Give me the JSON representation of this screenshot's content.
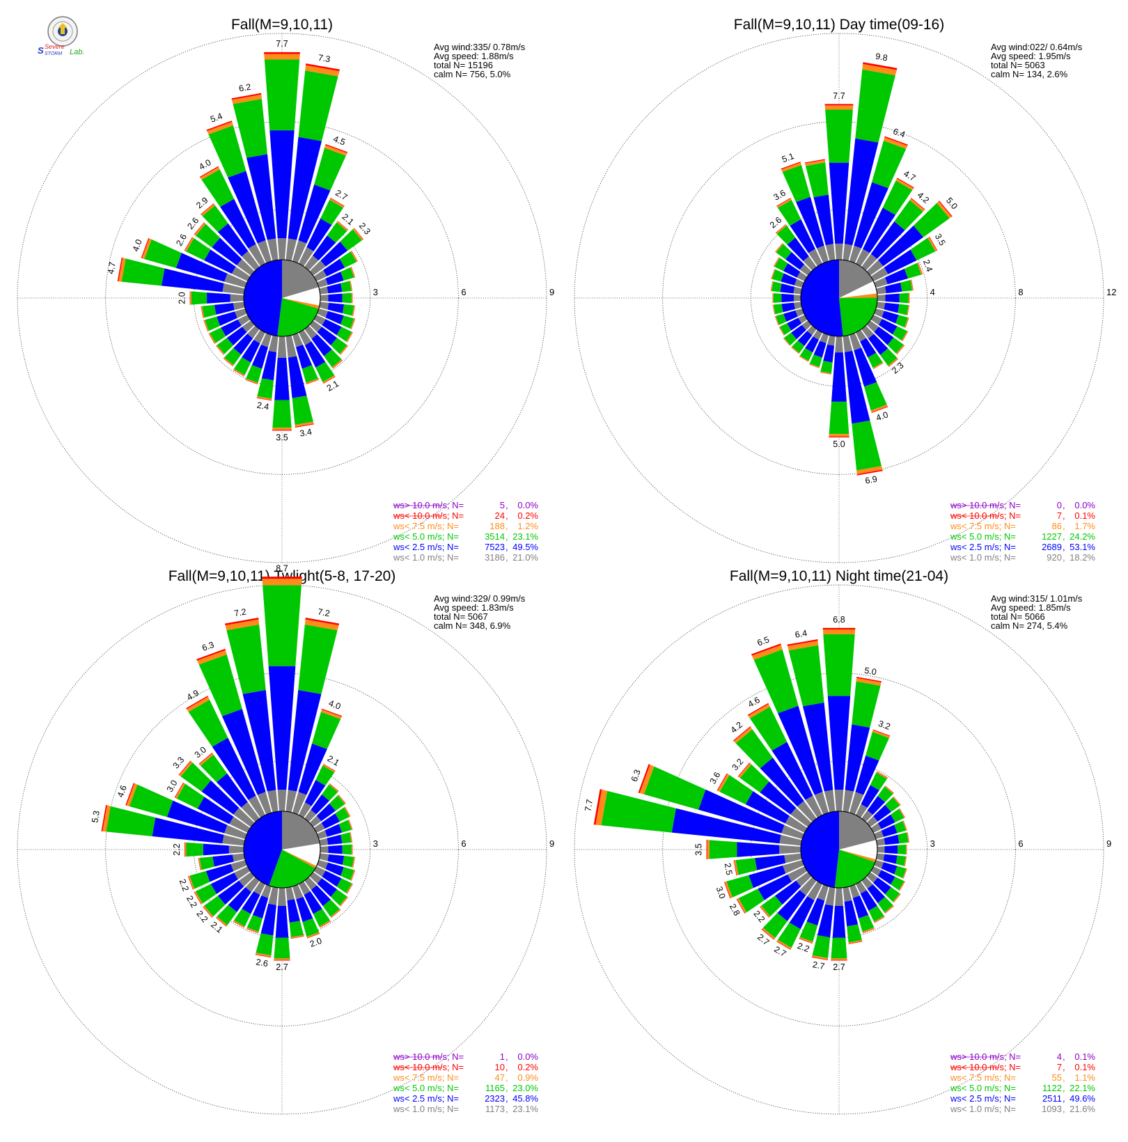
{
  "logo": {
    "text": "Severe Storm Lab."
  },
  "classes": [
    {
      "key": "gt10",
      "label": "ws> 10.0 m/s; N=",
      "color": "#8b00c8"
    },
    {
      "key": "lt10",
      "label": "ws< 10.0 m/s; N=",
      "color": "#ff0000"
    },
    {
      "key": "lt75",
      "label": "ws<  7.5 m/s; N=",
      "color": "#ff8c1a"
    },
    {
      "key": "lt5",
      "label": "ws<  5.0 m/s; N=",
      "color": "#00c800"
    },
    {
      "key": "lt25",
      "label": "ws<  2.5 m/s; N=",
      "color": "#0000ff"
    },
    {
      "key": "lt1",
      "label": "ws<  1.0 m/s; N=",
      "color": "#808080"
    }
  ],
  "chart_data": [
    {
      "type": "wind_rose",
      "title": "Fall(M=9,10,11)",
      "rings": [
        "3",
        "6",
        "9"
      ],
      "ring_max": 9,
      "stats": [
        "Avg wind:335/ 0.78m/s",
        "Avg speed: 1.88m/s",
        "total N=       15196",
        "calm N=     756,   5.0%"
      ],
      "legend": [
        {
          "n": "5",
          "pct": "0.0%"
        },
        {
          "n": "24",
          "pct": "0.2%"
        },
        {
          "n": "188",
          "pct": "1.2%"
        },
        {
          "n": "3514",
          "pct": "23.1%"
        },
        {
          "n": "7523",
          "pct": "49.5%"
        },
        {
          "n": "3186",
          "pct": "21.0%"
        }
      ],
      "bars_by_direction_deg": [
        {
          "dir": 0,
          "total": 7.7,
          "label": "7.7"
        },
        {
          "dir": 10,
          "total": 7.3,
          "label": "7.3"
        },
        {
          "dir": 20,
          "total": 4.5,
          "label": "4.5"
        },
        {
          "dir": 30,
          "total": 2.7,
          "label": "2.7"
        },
        {
          "dir": 40,
          "total": 2.1,
          "label": "2.1"
        },
        {
          "dir": 50,
          "total": 2.3,
          "label": "2.3"
        },
        {
          "dir": 60,
          "total": 1.7
        },
        {
          "dir": 70,
          "total": 1.4
        },
        {
          "dir": 80,
          "total": 1.2
        },
        {
          "dir": 90,
          "total": 1.2
        },
        {
          "dir": 100,
          "total": 1.3
        },
        {
          "dir": 110,
          "total": 1.4
        },
        {
          "dir": 120,
          "total": 1.5
        },
        {
          "dir": 130,
          "total": 1.6
        },
        {
          "dir": 140,
          "total": 1.8
        },
        {
          "dir": 150,
          "total": 2.1,
          "label": "2.1"
        },
        {
          "dir": 160,
          "total": 1.9
        },
        {
          "dir": 170,
          "total": 3.4,
          "label": "3.4"
        },
        {
          "dir": 180,
          "total": 3.5,
          "label": "3.5"
        },
        {
          "dir": 190,
          "total": 2.4,
          "label": "2.4"
        },
        {
          "dir": 200,
          "total": 1.9
        },
        {
          "dir": 210,
          "total": 1.8
        },
        {
          "dir": 220,
          "total": 1.7
        },
        {
          "dir": 230,
          "total": 1.6
        },
        {
          "dir": 240,
          "total": 1.6
        },
        {
          "dir": 250,
          "total": 1.6
        },
        {
          "dir": 260,
          "total": 1.6
        },
        {
          "dir": 270,
          "total": 2.0,
          "label": "2.0"
        },
        {
          "dir": 280,
          "total": 4.7,
          "label": "4.7"
        },
        {
          "dir": 290,
          "total": 4.0,
          "label": "4.0"
        },
        {
          "dir": 300,
          "total": 2.6,
          "label": "2.6"
        },
        {
          "dir": 310,
          "total": 2.6,
          "label": "2.6"
        },
        {
          "dir": 320,
          "total": 2.9,
          "label": "2.9"
        },
        {
          "dir": 330,
          "total": 4.0,
          "label": "4.0"
        },
        {
          "dir": 340,
          "total": 5.4,
          "label": "5.4"
        },
        {
          "dir": 350,
          "total": 6.2,
          "label": "6.2"
        }
      ]
    },
    {
      "type": "wind_rose",
      "title": "Fall(M=9,10,11) Day time(09-16)",
      "rings": [
        "4",
        "8",
        "12"
      ],
      "ring_max": 12,
      "stats": [
        "Avg wind:022/ 0.64m/s",
        "Avg speed: 1.95m/s",
        "total N=        5063",
        "calm N=     134,   2.6%"
      ],
      "legend": [
        {
          "n": "0",
          "pct": "0.0%"
        },
        {
          "n": "7",
          "pct": "0.1%"
        },
        {
          "n": "86",
          "pct": "1.7%"
        },
        {
          "n": "1227",
          "pct": "24.2%"
        },
        {
          "n": "2689",
          "pct": "53.1%"
        },
        {
          "n": "920",
          "pct": "18.2%"
        }
      ],
      "bars_by_direction_deg": [
        {
          "dir": 0,
          "total": 7.7,
          "label": "7.7"
        },
        {
          "dir": 10,
          "total": 9.8,
          "label": "9.8"
        },
        {
          "dir": 20,
          "total": 6.4,
          "label": "6.4"
        },
        {
          "dir": 30,
          "total": 4.7,
          "label": "4.7"
        },
        {
          "dir": 40,
          "total": 4.2,
          "label": "4.2"
        },
        {
          "dir": 50,
          "total": 5.0,
          "label": "5.0"
        },
        {
          "dir": 60,
          "total": 3.5,
          "label": "3.5"
        },
        {
          "dir": 70,
          "total": 2.4,
          "label": "2.4"
        },
        {
          "dir": 80,
          "total": 1.8
        },
        {
          "dir": 90,
          "total": 1.6
        },
        {
          "dir": 100,
          "total": 1.6
        },
        {
          "dir": 110,
          "total": 1.7
        },
        {
          "dir": 120,
          "total": 1.9
        },
        {
          "dir": 130,
          "total": 2.1
        },
        {
          "dir": 140,
          "total": 2.3,
          "label": "2.3"
        },
        {
          "dir": 150,
          "total": 2.0
        },
        {
          "dir": 160,
          "total": 4.0,
          "label": "4.0"
        },
        {
          "dir": 170,
          "total": 6.9,
          "label": "6.9"
        },
        {
          "dir": 180,
          "total": 5.0,
          "label": "5.0"
        },
        {
          "dir": 190,
          "total": 1.9
        },
        {
          "dir": 200,
          "total": 1.7
        },
        {
          "dir": 210,
          "total": 1.6
        },
        {
          "dir": 220,
          "total": 1.5
        },
        {
          "dir": 230,
          "total": 1.5
        },
        {
          "dir": 240,
          "total": 1.4
        },
        {
          "dir": 250,
          "total": 1.4
        },
        {
          "dir": 260,
          "total": 1.4
        },
        {
          "dir": 270,
          "total": 1.4
        },
        {
          "dir": 280,
          "total": 1.5
        },
        {
          "dir": 290,
          "total": 1.6
        },
        {
          "dir": 300,
          "total": 1.7
        },
        {
          "dir": 310,
          "total": 2.0
        },
        {
          "dir": 320,
          "total": 2.6,
          "label": "2.6"
        },
        {
          "dir": 330,
          "total": 3.6,
          "label": "3.6"
        },
        {
          "dir": 340,
          "total": 5.1,
          "label": "5.1"
        },
        {
          "dir": 350,
          "total": 5.0
        }
      ]
    },
    {
      "type": "wind_rose",
      "title": "Fall(M=9,10,11) Twlight(5-8, 17-20)",
      "rings": [
        "3",
        "6",
        "9"
      ],
      "ring_max": 9,
      "stats": [
        "Avg wind:329/ 0.99m/s",
        "Avg speed: 1.83m/s",
        "total N=        5067",
        "calm N=     348,   6.9%"
      ],
      "legend": [
        {
          "n": "1",
          "pct": "0.0%"
        },
        {
          "n": "10",
          "pct": "0.2%"
        },
        {
          "n": "47",
          "pct": "0.9%"
        },
        {
          "n": "1165",
          "pct": "23.0%"
        },
        {
          "n": "2323",
          "pct": "45.8%"
        },
        {
          "n": "1173",
          "pct": "23.1%"
        }
      ],
      "bars_by_direction_deg": [
        {
          "dir": 0,
          "total": 8.7,
          "label": "8.7"
        },
        {
          "dir": 10,
          "total": 7.2,
          "label": "7.2"
        },
        {
          "dir": 20,
          "total": 4.0,
          "label": "4.0"
        },
        {
          "dir": 30,
          "total": 2.1,
          "label": "2.1"
        },
        {
          "dir": 40,
          "total": 1.6
        },
        {
          "dir": 50,
          "total": 1.5
        },
        {
          "dir": 60,
          "total": 1.4
        },
        {
          "dir": 70,
          "total": 1.3
        },
        {
          "dir": 80,
          "total": 1.2
        },
        {
          "dir": 90,
          "total": 1.2
        },
        {
          "dir": 100,
          "total": 1.3
        },
        {
          "dir": 110,
          "total": 1.4
        },
        {
          "dir": 120,
          "total": 1.5
        },
        {
          "dir": 130,
          "total": 1.6
        },
        {
          "dir": 140,
          "total": 1.7
        },
        {
          "dir": 150,
          "total": 1.8
        },
        {
          "dir": 160,
          "total": 2.0,
          "label": "2.0"
        },
        {
          "dir": 170,
          "total": 1.9
        },
        {
          "dir": 180,
          "total": 2.7,
          "label": "2.7"
        },
        {
          "dir": 190,
          "total": 2.6,
          "label": "2.6"
        },
        {
          "dir": 200,
          "total": 1.8
        },
        {
          "dir": 210,
          "total": 1.8
        },
        {
          "dir": 220,
          "total": 2.1,
          "label": "2.1"
        },
        {
          "dir": 230,
          "total": 2.2,
          "label": "2.2"
        },
        {
          "dir": 240,
          "total": 2.2,
          "label": "2.2"
        },
        {
          "dir": 250,
          "total": 2.2,
          "label": "2.2"
        },
        {
          "dir": 260,
          "total": 1.7
        },
        {
          "dir": 270,
          "total": 2.2,
          "label": "2.2"
        },
        {
          "dir": 280,
          "total": 5.3,
          "label": "5.3"
        },
        {
          "dir": 290,
          "total": 4.6,
          "label": "4.6"
        },
        {
          "dir": 300,
          "total": 3.0,
          "label": "3.0"
        },
        {
          "dir": 310,
          "total": 3.3,
          "label": "3.3"
        },
        {
          "dir": 320,
          "total": 3.0,
          "label": "3.0"
        },
        {
          "dir": 330,
          "total": 4.9,
          "label": "4.9"
        },
        {
          "dir": 340,
          "total": 6.3,
          "label": "6.3"
        },
        {
          "dir": 350,
          "total": 7.2,
          "label": "7.2"
        }
      ]
    },
    {
      "type": "wind_rose",
      "title": "Fall(M=9,10,11) Night time(21-04)",
      "rings": [
        "3",
        "6",
        "9"
      ],
      "ring_max": 9,
      "stats": [
        "Avg wind:315/ 1.01m/s",
        "Avg speed: 1.85m/s",
        "total N=        5066",
        "calm N=     274,   5.4%"
      ],
      "legend": [
        {
          "n": "4",
          "pct": "0.1%"
        },
        {
          "n": "7",
          "pct": "0.1%"
        },
        {
          "n": "55",
          "pct": "1.1%"
        },
        {
          "n": "1122",
          "pct": "22.1%"
        },
        {
          "n": "2511",
          "pct": "49.6%"
        },
        {
          "n": "1093",
          "pct": "21.6%"
        }
      ],
      "bars_by_direction_deg": [
        {
          "dir": 0,
          "total": 6.8,
          "label": "6.8"
        },
        {
          "dir": 10,
          "total": 5.0,
          "label": "5.0"
        },
        {
          "dir": 20,
          "total": 3.2,
          "label": "3.2"
        },
        {
          "dir": 30,
          "total": 1.8
        },
        {
          "dir": 40,
          "total": 1.5
        },
        {
          "dir": 50,
          "total": 1.4
        },
        {
          "dir": 60,
          "total": 1.3
        },
        {
          "dir": 70,
          "total": 1.2
        },
        {
          "dir": 80,
          "total": 1.2
        },
        {
          "dir": 90,
          "total": 1.1
        },
        {
          "dir": 100,
          "total": 1.1
        },
        {
          "dir": 110,
          "total": 1.2
        },
        {
          "dir": 120,
          "total": 1.3
        },
        {
          "dir": 130,
          "total": 1.4
        },
        {
          "dir": 140,
          "total": 1.5
        },
        {
          "dir": 150,
          "total": 1.6
        },
        {
          "dir": 160,
          "total": 1.8
        },
        {
          "dir": 170,
          "total": 2.1
        },
        {
          "dir": 180,
          "total": 2.7,
          "label": "2.7"
        },
        {
          "dir": 190,
          "total": 2.7,
          "label": "2.7"
        },
        {
          "dir": 200,
          "total": 2.2,
          "label": "2.2"
        },
        {
          "dir": 210,
          "total": 2.7,
          "label": "2.7"
        },
        {
          "dir": 220,
          "total": 2.7,
          "label": "2.7"
        },
        {
          "dir": 230,
          "total": 2.2,
          "label": "2.2"
        },
        {
          "dir": 240,
          "total": 2.8,
          "label": "2.8"
        },
        {
          "dir": 250,
          "total": 3.0,
          "label": "3.0"
        },
        {
          "dir": 260,
          "total": 2.5,
          "label": "2.5"
        },
        {
          "dir": 270,
          "total": 3.5,
          "label": "3.5"
        },
        {
          "dir": 280,
          "total": 7.7,
          "label": "7.7"
        },
        {
          "dir": 290,
          "total": 6.3,
          "label": "6.3"
        },
        {
          "dir": 300,
          "total": 3.6,
          "label": "3.6"
        },
        {
          "dir": 310,
          "total": 3.2,
          "label": "3.2"
        },
        {
          "dir": 320,
          "total": 4.2,
          "label": "4.2"
        },
        {
          "dir": 330,
          "total": 4.6,
          "label": "4.6"
        },
        {
          "dir": 340,
          "total": 6.5,
          "label": "6.5"
        },
        {
          "dir": 350,
          "total": 6.4,
          "label": "6.4"
        }
      ]
    }
  ]
}
